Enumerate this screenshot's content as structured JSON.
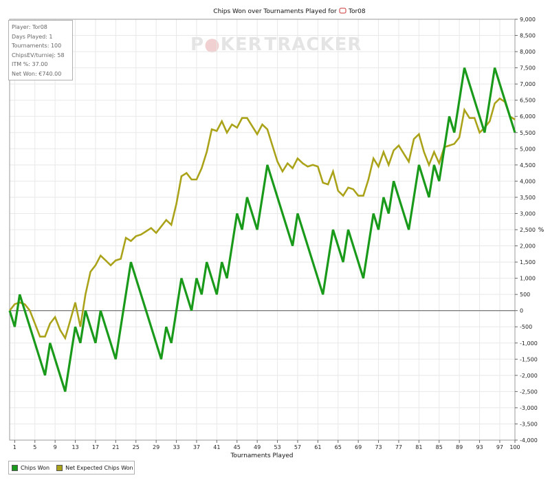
{
  "chart_data": {
    "type": "line",
    "title": "Chips Won over Tournaments Played for",
    "player_name": "Tor08",
    "xlabel": "Tournaments Played",
    "ylabel": "%",
    "xlim": [
      0,
      100
    ],
    "ylim": [
      -4000,
      9000
    ],
    "x_ticks": [
      1,
      5,
      9,
      13,
      17,
      21,
      25,
      29,
      33,
      37,
      41,
      45,
      49,
      53,
      57,
      61,
      65,
      69,
      73,
      77,
      81,
      85,
      89,
      93,
      97,
      100
    ],
    "y_ticks": [
      -4000,
      -3500,
      -3000,
      -2500,
      -2000,
      -1500,
      -1000,
      -500,
      0,
      500,
      1000,
      1500,
      2000,
      2500,
      3000,
      3500,
      4000,
      4500,
      5000,
      5500,
      6000,
      6500,
      7000,
      7500,
      8000,
      8500,
      9000
    ],
    "y_tick_labels": [
      "-4,000",
      "-3,500",
      "-3,000",
      "-2,500",
      "-2,000",
      "-1,500",
      "-1,000",
      "-500",
      "0",
      "500",
      "1,000",
      "1,500",
      "2,000",
      "2,500",
      "3,000",
      "3,500",
      "4,000",
      "4,500",
      "5,000",
      "5,500",
      "6,000",
      "6,500",
      "7,000",
      "7,500",
      "8,000",
      "8,500",
      "9,000"
    ],
    "grid": true,
    "legend_position": "bottom-left",
    "series": [
      {
        "name": "Chips Won",
        "color": "#1a9a1a",
        "points": [
          [
            0,
            0
          ],
          [
            1,
            -500
          ],
          [
            2,
            500
          ],
          [
            7,
            -2000
          ],
          [
            8,
            -1000
          ],
          [
            11,
            -2500
          ],
          [
            13,
            -500
          ],
          [
            14,
            -1000
          ],
          [
            15,
            0
          ],
          [
            17,
            -1000
          ],
          [
            18,
            0
          ],
          [
            21,
            -1500
          ],
          [
            24,
            1500
          ],
          [
            30,
            -1500
          ],
          [
            31,
            -500
          ],
          [
            32,
            -1000
          ],
          [
            34,
            1000
          ],
          [
            36,
            0
          ],
          [
            37,
            1000
          ],
          [
            38,
            500
          ],
          [
            39,
            1500
          ],
          [
            41,
            500
          ],
          [
            42,
            1500
          ],
          [
            43,
            1000
          ],
          [
            45,
            3000
          ],
          [
            46,
            2500
          ],
          [
            47,
            3500
          ],
          [
            49,
            2500
          ],
          [
            51,
            4500
          ],
          [
            56,
            2000
          ],
          [
            57,
            3000
          ],
          [
            62,
            500
          ],
          [
            64,
            2500
          ],
          [
            66,
            1500
          ],
          [
            67,
            2500
          ],
          [
            70,
            1000
          ],
          [
            72,
            3000
          ],
          [
            73,
            2500
          ],
          [
            74,
            3500
          ],
          [
            75,
            3000
          ],
          [
            76,
            4000
          ],
          [
            79,
            2500
          ],
          [
            81,
            4500
          ],
          [
            83,
            3500
          ],
          [
            84,
            4500
          ],
          [
            85,
            4000
          ],
          [
            87,
            6000
          ],
          [
            88,
            5500
          ],
          [
            90,
            7500
          ],
          [
            94,
            5500
          ],
          [
            96,
            7500
          ],
          [
            100,
            5500
          ]
        ]
      },
      {
        "name": "Net Expected Chips Won",
        "color": "#aaa31a",
        "points": [
          [
            0,
            0
          ],
          [
            1,
            200
          ],
          [
            2,
            250
          ],
          [
            3,
            200
          ],
          [
            4,
            0
          ],
          [
            5,
            -400
          ],
          [
            6,
            -800
          ],
          [
            7,
            -800
          ],
          [
            8,
            -400
          ],
          [
            9,
            -200
          ],
          [
            10,
            -600
          ],
          [
            11,
            -850
          ],
          [
            12,
            -300
          ],
          [
            13,
            250
          ],
          [
            14,
            -500
          ],
          [
            15,
            500
          ],
          [
            16,
            1200
          ],
          [
            17,
            1400
          ],
          [
            18,
            1700
          ],
          [
            19,
            1550
          ],
          [
            20,
            1400
          ],
          [
            21,
            1550
          ],
          [
            22,
            1600
          ],
          [
            23,
            2250
          ],
          [
            24,
            2150
          ],
          [
            25,
            2300
          ],
          [
            26,
            2350
          ],
          [
            27,
            2450
          ],
          [
            28,
            2550
          ],
          [
            29,
            2400
          ],
          [
            30,
            2600
          ],
          [
            31,
            2800
          ],
          [
            32,
            2650
          ],
          [
            33,
            3300
          ],
          [
            34,
            4150
          ],
          [
            35,
            4250
          ],
          [
            36,
            4050
          ],
          [
            37,
            4050
          ],
          [
            38,
            4400
          ],
          [
            39,
            4900
          ],
          [
            40,
            5600
          ],
          [
            41,
            5550
          ],
          [
            42,
            5850
          ],
          [
            43,
            5500
          ],
          [
            44,
            5750
          ],
          [
            45,
            5650
          ],
          [
            46,
            5950
          ],
          [
            47,
            5950
          ],
          [
            48,
            5700
          ],
          [
            49,
            5450
          ],
          [
            50,
            5750
          ],
          [
            51,
            5600
          ],
          [
            52,
            5100
          ],
          [
            53,
            4600
          ],
          [
            54,
            4300
          ],
          [
            55,
            4550
          ],
          [
            56,
            4400
          ],
          [
            57,
            4700
          ],
          [
            58,
            4550
          ],
          [
            59,
            4450
          ],
          [
            60,
            4500
          ],
          [
            61,
            4450
          ],
          [
            62,
            3950
          ],
          [
            63,
            3900
          ],
          [
            64,
            4300
          ],
          [
            65,
            3700
          ],
          [
            66,
            3550
          ],
          [
            67,
            3800
          ],
          [
            68,
            3750
          ],
          [
            69,
            3550
          ],
          [
            70,
            3550
          ],
          [
            71,
            4050
          ],
          [
            72,
            4700
          ],
          [
            73,
            4450
          ],
          [
            74,
            4900
          ],
          [
            75,
            4500
          ],
          [
            76,
            4950
          ],
          [
            77,
            5100
          ],
          [
            78,
            4850
          ],
          [
            79,
            4600
          ],
          [
            80,
            5300
          ],
          [
            81,
            5450
          ],
          [
            82,
            4900
          ],
          [
            83,
            4500
          ],
          [
            84,
            4900
          ],
          [
            85,
            4550
          ],
          [
            86,
            5050
          ],
          [
            87,
            5100
          ],
          [
            88,
            5150
          ],
          [
            89,
            5350
          ],
          [
            90,
            6200
          ],
          [
            91,
            5950
          ],
          [
            92,
            5950
          ],
          [
            93,
            5500
          ],
          [
            94,
            5650
          ],
          [
            95,
            5850
          ],
          [
            96,
            6400
          ],
          [
            97,
            6550
          ],
          [
            98,
            6450
          ],
          [
            99,
            6000
          ],
          [
            100,
            5900
          ]
        ]
      }
    ]
  },
  "watermark": {
    "part1": "P",
    "part2": "KER",
    "part3": "TRACKER"
  },
  "stats": {
    "player": "Player: Tor08",
    "days_played": "Days Played: 1",
    "tournaments": "Tournaments: 100",
    "chipsev": "ChipsEV/turniej: 58",
    "itm": "ITM %: 37.00",
    "net_won": "Net Won: €740.00"
  },
  "legend": {
    "chips_won": "Chips Won",
    "net_expected": "Net Expected Chips Won"
  },
  "colors": {
    "chips_won": "#1a9a1a",
    "net_expected": "#aaa31a",
    "grid": "#e8e8e8",
    "zero_line": "#555555"
  }
}
